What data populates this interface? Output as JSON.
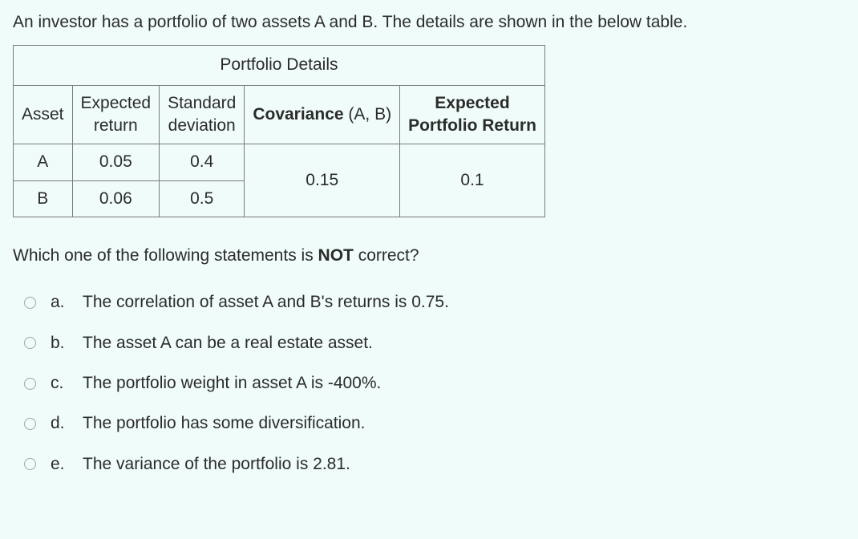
{
  "intro_text": "An investor has a portfolio of two assets A and B. The details are shown in the below table.",
  "table": {
    "caption": "Portfolio Details",
    "headers": {
      "col1": "Asset",
      "col2_top": "Expected",
      "col2_bottom": "return",
      "col3_top": "Standard",
      "col3_bottom": "deviation",
      "col4_pre": "Covariance",
      "col4_post": " (A, B)",
      "col5_top": "Expected",
      "col5_bottom": "Portfolio Return"
    },
    "rows": [
      {
        "asset": "A",
        "er": "0.05",
        "sd": "0.4"
      },
      {
        "asset": "B",
        "er": "0.06",
        "sd": "0.5"
      }
    ],
    "cov": "0.15",
    "epr": "0.1"
  },
  "question_pre": "Which one of the following statements is ",
  "question_not": "NOT",
  "question_post": " correct?",
  "options": [
    {
      "letter": "a.",
      "text": "The correlation of asset A and B's returns is 0.75."
    },
    {
      "letter": "b.",
      "text": "The asset A can be a real estate asset."
    },
    {
      "letter": "c.",
      "text": "The portfolio weight in asset A is -400%."
    },
    {
      "letter": "d.",
      "text": "The portfolio has some diversification."
    },
    {
      "letter": "e.",
      "text": "The variance of the portfolio is 2.81."
    }
  ],
  "colors": {
    "background": "#f0fcfa",
    "text": "#2b2b2b",
    "border": "#7a7a7a",
    "radio_border": "#9aa7a4"
  }
}
